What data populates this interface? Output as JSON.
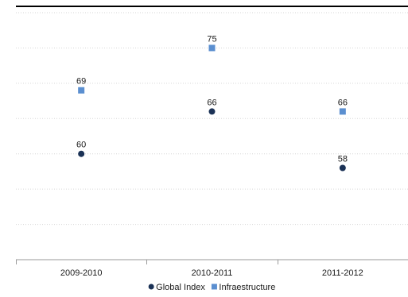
{
  "chart_data": {
    "type": "scatter",
    "title": "",
    "xlabel": "",
    "ylabel": "",
    "categories": [
      "2009-2010",
      "2010-2011",
      "2011-2012"
    ],
    "series": [
      {
        "name": "Global Index",
        "values": [
          60,
          66,
          58
        ],
        "color": "#1b3256",
        "marker": "circle"
      },
      {
        "name": "Infraestructure",
        "values": [
          69,
          75,
          66
        ],
        "color": "#5b8fd0",
        "marker": "square"
      }
    ],
    "ylim": [
      45,
      80
    ],
    "y_gridlines": [
      50,
      55,
      60,
      65,
      70,
      75,
      80
    ],
    "grid": true,
    "legend_position": "bottom-center",
    "top_rule_color": "#000000",
    "grid_color": "#d6d6d6",
    "axis_color": "#9a9a9a"
  }
}
